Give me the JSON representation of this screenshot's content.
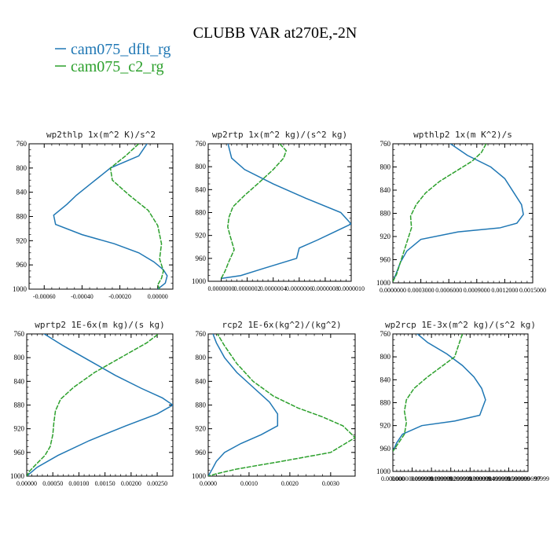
{
  "figure": {
    "title": "CLUBB VAR at270E,-2N",
    "legend": [
      {
        "label": "cam075_dflt_rg",
        "color": "#1f77b4"
      },
      {
        "label": "cam075_c2_rg",
        "color": "#2ca02c"
      }
    ]
  },
  "chart_data": [
    {
      "type": "line",
      "title": "wp2thlp   1x(m^2 K)/s^2",
      "xlim": [
        -0.00068,
        8e-05
      ],
      "ylim": [
        760,
        1000
      ],
      "y_inverted": true,
      "yticks": [
        "760",
        "800",
        "840",
        "880",
        "920",
        "960",
        "1000"
      ],
      "xticks": [
        -0.0006,
        -0.0004,
        -0.0002,
        0.0
      ],
      "xtick_labels": [
        "-0.00060",
        "-0.00040",
        "-0.00020",
        "0.00000"
      ],
      "series": [
        {
          "name": "cam075_dflt_rg",
          "color": "#1f77b4",
          "x": [
            -5e-05,
            -0.0001,
            -0.00025,
            -0.00035,
            -0.00043,
            -0.00048,
            -0.00055,
            -0.00054,
            -0.0004,
            -0.00023,
            -0.0001,
            -2e-05,
            3e-05,
            5e-05,
            4e-05,
            0.0
          ],
          "y": [
            757,
            780,
            800,
            825,
            845,
            860,
            878,
            893,
            910,
            925,
            940,
            955,
            968,
            978,
            990,
            1000
          ]
        },
        {
          "name": "cam075_c2_rg",
          "color": "#2ca02c",
          "x": [
            -0.0001,
            -0.00017,
            -0.00025,
            -0.00024,
            -0.00015,
            -5e-05,
            0.0,
            2e-05,
            1e-05,
            3e-05,
            2e-05,
            0.0,
            1e-05
          ],
          "y": [
            760,
            780,
            800,
            820,
            845,
            870,
            895,
            925,
            950,
            970,
            982,
            993,
            1000
          ]
        }
      ]
    },
    {
      "type": "line",
      "title": "wp2rtp   1x(m^2 kg)/(s^2 kg)",
      "xlim": [
        -1e-07,
        1e-06
      ],
      "ylim": [
        760,
        1000
      ],
      "y_inverted": true,
      "yticks": [
        "760",
        "800",
        "840",
        "880",
        "920",
        "960",
        "1000"
      ],
      "xticks": [
        0.0,
        2e-07,
        4e-07,
        6e-07,
        8e-07,
        1e-06
      ],
      "xtick_labels": [
        "0.0000000",
        "0.0000002",
        "0.0000004",
        "0.0000006",
        "0.0000008",
        "0.0000010"
      ],
      "series": [
        {
          "name": "cam075_dflt_rg",
          "color": "#1f77b4",
          "x": [
            5e-08,
            8e-08,
            1.8e-07,
            4e-07,
            6.5e-07,
            9.2e-07,
            1e-06,
            8.6e-07,
            7.4e-07,
            6e-07,
            5.8e-07,
            3.2e-07,
            1.5e-07,
            0.0
          ],
          "y": [
            758,
            785,
            805,
            830,
            855,
            880,
            900,
            915,
            928,
            942,
            960,
            978,
            990,
            995
          ]
        },
        {
          "name": "cam075_c2_rg",
          "color": "#2ca02c",
          "x": [
            4.5e-07,
            5e-07,
            4.8e-07,
            4e-07,
            2.8e-07,
            1.8e-07,
            9e-08,
            6e-08,
            5e-08,
            7e-08,
            1e-07,
            6e-08,
            3e-08,
            0.0
          ],
          "y": [
            760,
            772,
            785,
            805,
            830,
            850,
            870,
            888,
            905,
            922,
            945,
            965,
            982,
            995
          ]
        }
      ]
    },
    {
      "type": "line",
      "title": "wpthlp2   1x(m K^2)/s",
      "xlim": [
        0.0,
        0.0015
      ],
      "ylim": [
        760,
        1000
      ],
      "y_inverted": true,
      "yticks": [
        "760",
        "800",
        "840",
        "880",
        "920",
        "960",
        "1000"
      ],
      "xticks": [
        0.0,
        0.0003,
        0.0006,
        0.0009,
        0.0012,
        0.0015
      ],
      "xtick_labels": [
        "0.0000000",
        "0.0003000",
        "0.0006000",
        "0.0009000",
        "0.0012000",
        "0.0015000"
      ],
      "series": [
        {
          "name": "cam075_dflt_rg",
          "color": "#1f77b4",
          "x": [
            0.0006,
            0.0008,
            0.00105,
            0.0012,
            0.0013,
            0.00138,
            0.0014,
            0.00133,
            0.00115,
            0.0007,
            0.0003,
            0.00015,
            8e-05,
            4e-05,
            0.0
          ],
          "y": [
            758,
            780,
            800,
            820,
            845,
            865,
            882,
            897,
            905,
            912,
            925,
            945,
            965,
            982,
            998
          ]
        },
        {
          "name": "cam075_c2_rg",
          "color": "#2ca02c",
          "x": [
            0.001,
            0.00095,
            0.00085,
            0.0007,
            0.0005,
            0.00035,
            0.00025,
            0.00019,
            0.0002,
            0.00016,
            0.00012,
            8e-05,
            4e-05,
            0.0
          ],
          "y": [
            760,
            775,
            790,
            805,
            825,
            845,
            865,
            885,
            905,
            925,
            945,
            965,
            985,
            998
          ]
        }
      ]
    },
    {
      "type": "line",
      "title": "wprtp2   1E-6x(m kg)/(s kg)",
      "xlim": [
        0.0,
        0.0028
      ],
      "ylim": [
        760,
        1000
      ],
      "y_inverted": true,
      "yticks": [
        "760",
        "800",
        "840",
        "880",
        "920",
        "960",
        "1000"
      ],
      "xticks": [
        0.0,
        0.0005,
        0.001,
        0.0015,
        0.002,
        0.0025
      ],
      "xtick_labels": [
        "0.00000",
        "0.00050",
        "0.00100",
        "0.00150",
        "0.00200",
        "0.00250"
      ],
      "series": [
        {
          "name": "cam075_dflt_rg",
          "color": "#1f77b4",
          "x": [
            0.0003,
            0.0007,
            0.0012,
            0.0017,
            0.0022,
            0.0026,
            0.0028,
            0.0025,
            0.0019,
            0.0012,
            0.0006,
            0.0002,
            0.0
          ],
          "y": [
            758,
            780,
            805,
            830,
            852,
            868,
            880,
            895,
            915,
            940,
            965,
            985,
            1000
          ]
        },
        {
          "name": "cam075_c2_rg",
          "color": "#2ca02c",
          "x": [
            0.0026,
            0.0023,
            0.0018,
            0.0013,
            0.0009,
            0.00065,
            0.00055,
            0.00052,
            0.0005,
            0.00045,
            0.00035,
            0.00018,
            5e-05,
            0.0
          ],
          "y": [
            755,
            775,
            800,
            825,
            850,
            870,
            890,
            910,
            930,
            950,
            965,
            980,
            992,
            1000
          ]
        }
      ]
    },
    {
      "type": "line",
      "title": "rcp2   1E-6x(kg^2)/(kg^2)",
      "xlim": [
        0.0,
        0.0036
      ],
      "ylim": [
        760,
        1000
      ],
      "y_inverted": true,
      "yticks": [
        "760",
        "800",
        "840",
        "880",
        "920",
        "960",
        "1000"
      ],
      "xticks": [
        0.0,
        0.001,
        0.002,
        0.003
      ],
      "xtick_labels": [
        "0.0000",
        "0.0010",
        "0.0020",
        "0.0030"
      ],
      "series": [
        {
          "name": "cam075_dflt_rg",
          "color": "#1f77b4",
          "x": [
            0.0001,
            0.0002,
            0.0004,
            0.0007,
            0.0011,
            0.0015,
            0.0017,
            0.0017,
            0.0013,
            0.0008,
            0.0004,
            0.0002,
            0.0001,
            0.0
          ],
          "y": [
            757,
            775,
            800,
            825,
            850,
            875,
            895,
            915,
            930,
            945,
            960,
            975,
            988,
            1000
          ]
        },
        {
          "name": "cam075_c2_rg",
          "color": "#2ca02c",
          "x": [
            0.0002,
            0.0004,
            0.0007,
            0.0011,
            0.0016,
            0.0022,
            0.0028,
            0.0033,
            0.0036,
            0.003,
            0.0018,
            0.0007,
            0.0002,
            0.0
          ],
          "y": [
            757,
            780,
            810,
            840,
            865,
            885,
            900,
            915,
            935,
            960,
            975,
            988,
            996,
            1000
          ]
        }
      ]
    },
    {
      "type": "line",
      "title": "wp2rcp   1E-3x(m^2 kg)/(s^2 kg)",
      "xlim": [
        0.0,
        7e-07
      ],
      "ylim": [
        760,
        1000
      ],
      "y_inverted": true,
      "yticks": [
        "760",
        "800",
        "840",
        "880",
        "920",
        "960",
        "1000"
      ],
      "xticks": [
        0.0,
        1e-07,
        2e-07,
        3e-07,
        4e-07,
        5e-07,
        6e-07,
        7e-07
      ],
      "xtick_labels": [
        "0.000000",
        "0.000000099999",
        "0.000000199999",
        "0.000000299999",
        "0.000000399999",
        "0.000000499999",
        "0.000000599999",
        "0.000000699999"
      ],
      "xtick_footer": "97",
      "series": [
        {
          "name": "cam075_dflt_rg",
          "color": "#1f77b4",
          "x": [
            1.2e-07,
            1.8e-07,
            2.8e-07,
            3.6e-07,
            4.2e-07,
            4.6e-07,
            4.8e-07,
            4.5e-07,
            3.2e-07,
            1.5e-07,
            5e-08,
            2e-08,
            0.0
          ],
          "y": [
            758,
            775,
            795,
            815,
            835,
            855,
            875,
            902,
            912,
            920,
            935,
            950,
            965
          ]
        },
        {
          "name": "cam075_c2_rg",
          "color": "#2ca02c",
          "x": [
            3.6e-07,
            3.4e-07,
            3.2e-07,
            2.6e-07,
            1.8e-07,
            1.1e-07,
            7e-08,
            6e-08,
            7e-08,
            6e-08,
            3e-08,
            0.0
          ],
          "y": [
            760,
            780,
            800,
            815,
            835,
            855,
            875,
            895,
            915,
            935,
            950,
            965
          ]
        }
      ]
    }
  ]
}
